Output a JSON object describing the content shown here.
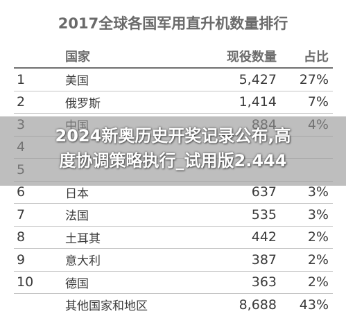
{
  "title": "2017全球各国军用直升机数量排行",
  "table": {
    "headers": {
      "rank": "",
      "country": "国家",
      "count": "现役数量",
      "share": "占比"
    },
    "rows": [
      {
        "rank": "1",
        "country": "美国",
        "count": "5,427",
        "share": "27%"
      },
      {
        "rank": "2",
        "country": "俄罗斯",
        "count": "1,414",
        "share": "7%"
      },
      {
        "rank": "3",
        "country": "中国",
        "count": "884",
        "share": "4%"
      },
      {
        "rank": "4",
        "country": "",
        "count": "",
        "share": ""
      },
      {
        "rank": "5",
        "country": "",
        "count": "",
        "share": ""
      },
      {
        "rank": "6",
        "country": "日本",
        "count": "637",
        "share": "3%"
      },
      {
        "rank": "7",
        "country": "法国",
        "count": "535",
        "share": "3%"
      },
      {
        "rank": "8",
        "country": "土耳其",
        "count": "442",
        "share": "2%"
      },
      {
        "rank": "9",
        "country": "意大利",
        "count": "387",
        "share": "2%"
      },
      {
        "rank": "10",
        "country": "德国",
        "count": "363",
        "share": "2%"
      },
      {
        "rank": "",
        "country": "其他国家和地区",
        "count": "8,688",
        "share": "43%"
      }
    ]
  },
  "overlay": {
    "line1": "2024新奥历史开奖记录公布,高",
    "line2": "度协调策略执行_试用版2.444"
  },
  "colors": {
    "title": "#6a6a6a",
    "header": "#6b6b6b",
    "overlay": "#969696"
  }
}
